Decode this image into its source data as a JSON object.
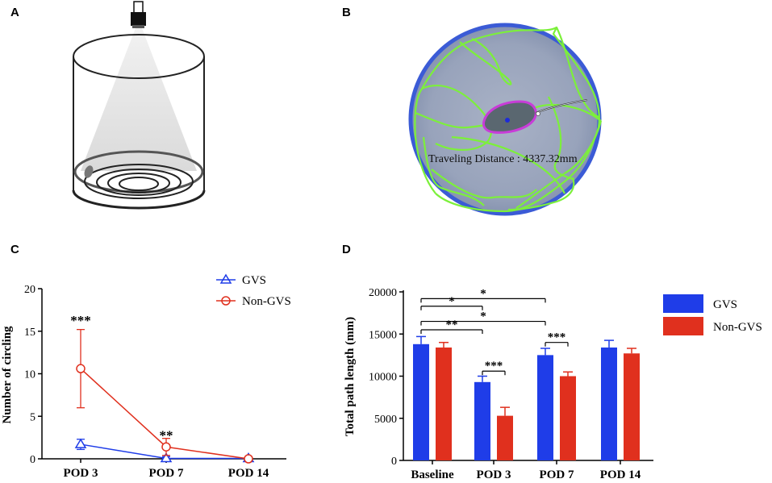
{
  "panels": {
    "a": "A",
    "b": "B",
    "c": "C",
    "d": "D"
  },
  "panel_b": {
    "overlay_text": "Traveling Distance : 4337.32mm"
  },
  "colors": {
    "gvs": "#1f3de8",
    "non_gvs": "#e0301e",
    "arena_border": "#3b5bd6",
    "arena_fill": "#9aa6bd",
    "track": "#7cf03a",
    "mouse_outline": "#c83cd8"
  },
  "chart_data": [
    {
      "type": "line",
      "panel": "C",
      "categories": [
        "POD 3",
        "POD 7",
        "POD 14"
      ],
      "ylabel": "Number of circling",
      "xlabel": "",
      "ylim": [
        0,
        20
      ],
      "yticks": [
        0,
        5,
        10,
        15,
        20
      ],
      "legend_position": "top-right",
      "series": [
        {
          "name": "GVS",
          "marker": "triangle",
          "values": [
            1.7,
            0.05,
            0.05
          ],
          "errors": [
            0.6,
            0.2,
            0.1
          ]
        },
        {
          "name": "Non-GVS",
          "marker": "circle",
          "values": [
            10.6,
            1.4,
            0.0
          ],
          "errors": [
            4.6,
            1.0,
            0.1
          ]
        }
      ],
      "annotations": [
        {
          "category": "POD 3",
          "text": "***",
          "value": 16.5
        },
        {
          "category": "POD 7",
          "text": "**",
          "value": 3.0
        }
      ]
    },
    {
      "type": "bar",
      "panel": "D",
      "categories": [
        "Baseline",
        "POD 3",
        "POD 7",
        "POD 14"
      ],
      "ylabel": "Total path length (mm)",
      "xlabel": "",
      "ylim": [
        0,
        20000
      ],
      "yticks": [
        0,
        5000,
        10000,
        15000,
        20000
      ],
      "legend_position": "top-right",
      "series": [
        {
          "name": "GVS",
          "values": [
            13800,
            9300,
            12500,
            13400
          ],
          "errors": [
            900,
            700,
            800,
            850
          ]
        },
        {
          "name": "Non-GVS",
          "values": [
            13400,
            5300,
            10000,
            12700
          ],
          "errors": [
            600,
            1000,
            500,
            600
          ]
        }
      ],
      "brackets": [
        {
          "from": [
            0,
            0
          ],
          "to": [
            2,
            0
          ],
          "level": 19200,
          "text": "*"
        },
        {
          "from": [
            0,
            0
          ],
          "to": [
            1,
            0
          ],
          "level": 18300,
          "text": "*"
        },
        {
          "from": [
            0,
            0
          ],
          "to": [
            2,
            0
          ],
          "level": 16500,
          "text": "*"
        },
        {
          "from": [
            0,
            0
          ],
          "to": [
            1,
            0
          ],
          "level": 15500,
          "text": "**"
        },
        {
          "from": [
            1,
            0
          ],
          "to": [
            1,
            1
          ],
          "level": 10600,
          "text": "***"
        },
        {
          "from": [
            2,
            0
          ],
          "to": [
            2,
            1
          ],
          "level": 14000,
          "text": "***"
        }
      ]
    }
  ]
}
